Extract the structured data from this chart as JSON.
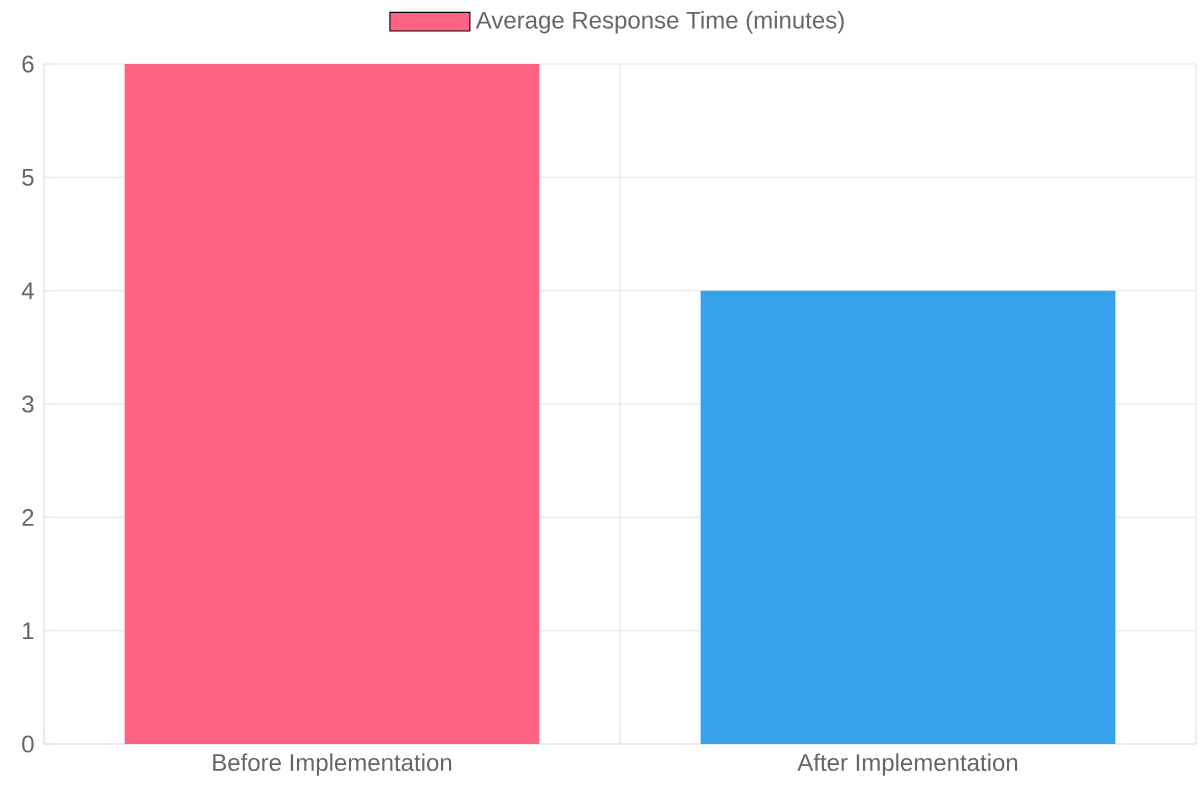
{
  "chart_data": {
    "type": "bar",
    "categories": [
      "Before Implementation",
      "After Implementation"
    ],
    "series": [
      {
        "name": "Average Response Time (minutes)",
        "colors": [
          "#ff6384",
          "#36a2eb"
        ],
        "values": [
          6,
          4
        ]
      }
    ],
    "ylim": [
      0,
      6
    ],
    "yticks": [
      0,
      1,
      2,
      3,
      4,
      5,
      6
    ],
    "grid": true,
    "legend": "top"
  }
}
